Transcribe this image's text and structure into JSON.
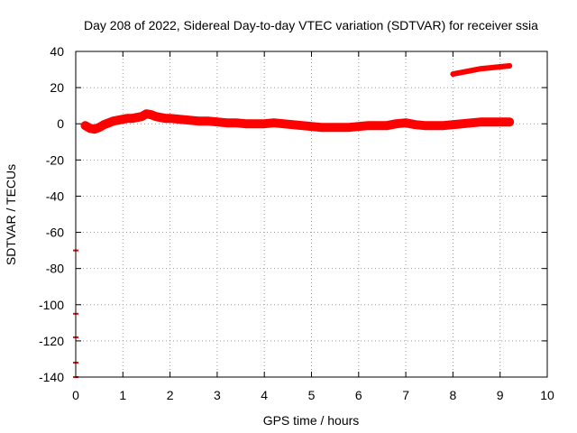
{
  "chart_data": {
    "type": "line",
    "title": "Day 208 of 2022, Sidereal Day-to-day VTEC variation (SDTVAR) for receiver ssia",
    "xlabel": "GPS time / hours",
    "ylabel": "SDTVAR / TECUs",
    "xlim": [
      0,
      10
    ],
    "ylim": [
      -140,
      40
    ],
    "x_ticks": [
      "0",
      "1",
      "2",
      "3",
      "4",
      "5",
      "6",
      "7",
      "8",
      "9",
      "10"
    ],
    "y_ticks": [
      "40",
      "20",
      "0",
      "-20",
      "-40",
      "-60",
      "-80",
      "-100",
      "-120",
      "-140"
    ],
    "grid": true,
    "legend": "none",
    "series_color": "#ff0000",
    "series": [
      {
        "x": [
          0.2,
          0.3,
          0.4,
          0.5,
          0.6,
          0.7,
          0.8,
          0.9,
          1.0,
          1.1,
          1.2,
          1.3,
          1.4,
          1.5,
          1.6,
          1.7,
          1.8,
          1.9,
          2.0,
          2.2,
          2.4,
          2.6,
          2.8,
          3.0,
          3.2,
          3.4,
          3.6,
          3.8,
          4.0,
          4.2,
          4.4,
          4.6,
          4.8,
          5.0,
          5.2,
          5.4,
          5.6,
          5.8,
          6.0,
          6.2,
          6.4,
          6.6,
          6.8,
          7.0,
          7.2,
          7.4,
          7.6,
          7.8,
          8.0,
          8.2,
          8.4,
          8.6,
          8.8,
          9.0,
          9.2
        ],
        "values": [
          -1.0,
          -2.5,
          -3.0,
          -2.0,
          -0.5,
          0.5,
          1.5,
          2.0,
          2.5,
          3.0,
          3.0,
          3.5,
          4.0,
          5.5,
          5.0,
          4.0,
          3.5,
          3.0,
          3.0,
          2.5,
          2.0,
          1.5,
          1.5,
          1.0,
          0.5,
          0.5,
          0.0,
          0.0,
          0.0,
          0.5,
          0.0,
          -0.5,
          -1.0,
          -1.5,
          -2.0,
          -2.0,
          -2.0,
          -2.0,
          -1.5,
          -1.0,
          -1.0,
          -1.0,
          0.0,
          0.5,
          -0.5,
          -1.0,
          -1.0,
          -1.0,
          -0.5,
          0.0,
          0.5,
          1.0,
          1.0,
          1.0,
          1.0
        ]
      },
      {
        "x": [
          8.0,
          8.2,
          8.4,
          8.6,
          8.8,
          9.0,
          9.2
        ],
        "values": [
          27.5,
          28.5,
          29.5,
          30.5,
          31.0,
          31.5,
          32.0
        ]
      },
      {
        "x": [
          0.0,
          0.0,
          0.0,
          0.0,
          0.0
        ],
        "values": [
          -70,
          -105,
          -118,
          -132,
          -140
        ]
      }
    ]
  }
}
